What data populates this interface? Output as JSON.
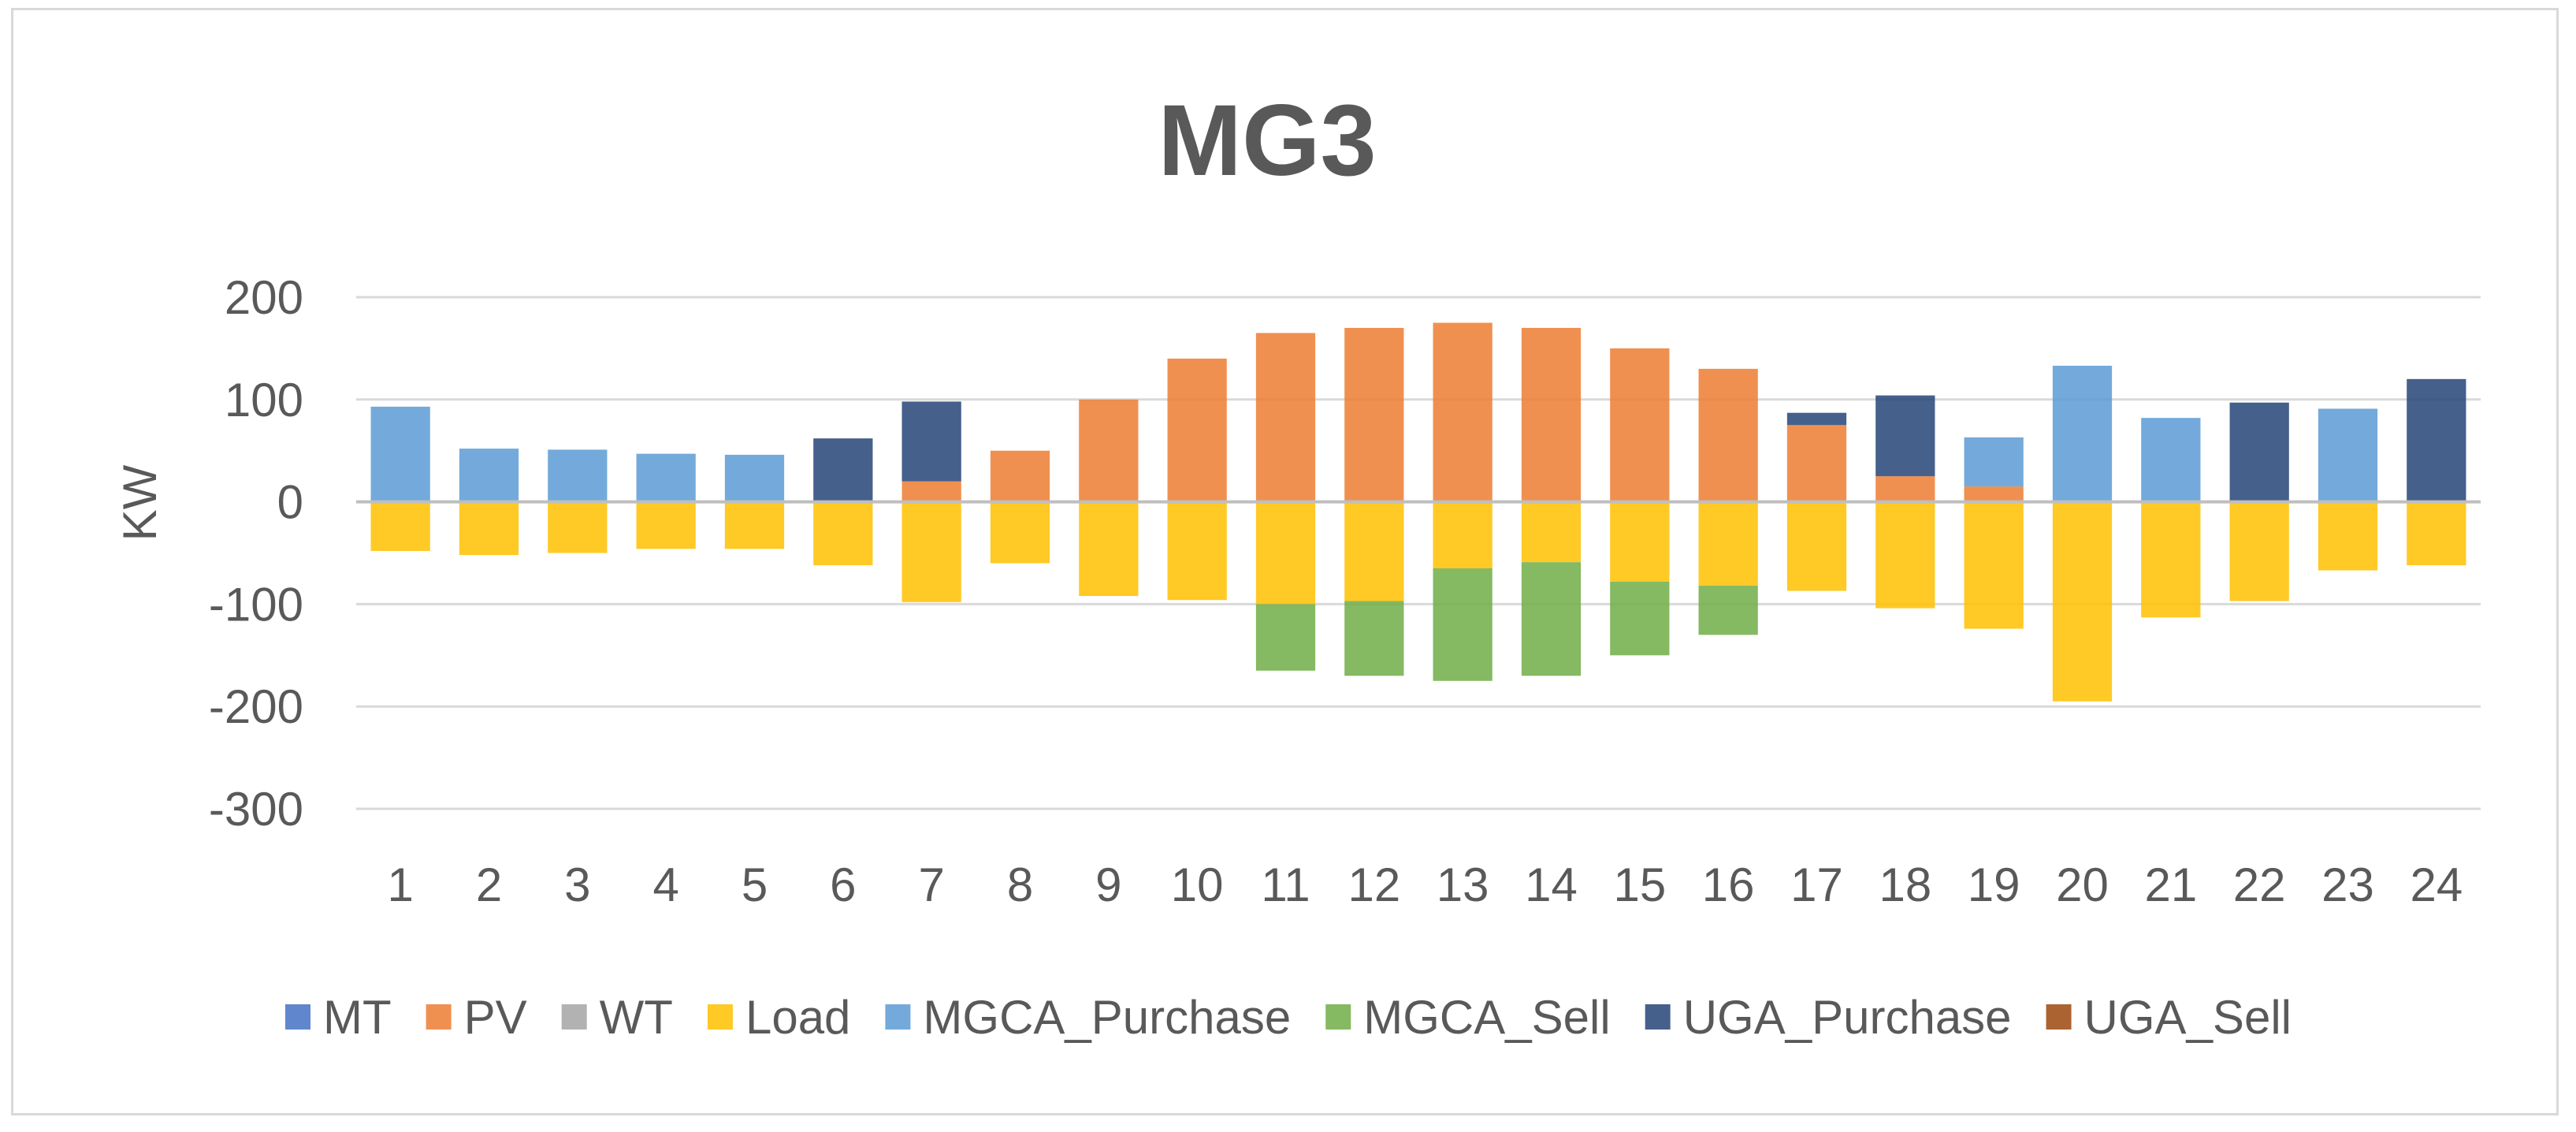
{
  "chart_data": {
    "type": "bar",
    "stacked": true,
    "title": "MG3",
    "xlabel": "",
    "ylabel": "KW",
    "ylim": [
      -300,
      200
    ],
    "yticks": [
      200,
      100,
      0,
      -100,
      -200,
      -300
    ],
    "grid": true,
    "legend_position": "bottom",
    "categories": [
      "1",
      "2",
      "3",
      "4",
      "5",
      "6",
      "7",
      "8",
      "9",
      "10",
      "11",
      "12",
      "13",
      "14",
      "15",
      "16",
      "17",
      "18",
      "19",
      "20",
      "21",
      "22",
      "23",
      "24"
    ],
    "series": [
      {
        "name": "MT",
        "color": "#4472C4",
        "values": [
          0,
          0,
          0,
          0,
          0,
          0,
          0,
          0,
          0,
          0,
          0,
          0,
          0,
          0,
          0,
          0,
          0,
          0,
          0,
          0,
          0,
          0,
          0,
          0
        ]
      },
      {
        "name": "PV",
        "color": "#ED7D31",
        "values": [
          0,
          0,
          0,
          0,
          0,
          0,
          20,
          50,
          100,
          140,
          165,
          170,
          175,
          170,
          150,
          130,
          75,
          25,
          15,
          0,
          0,
          0,
          0,
          0
        ]
      },
      {
        "name": "WT",
        "color": "#A5A5A5",
        "values": [
          0,
          0,
          0,
          0,
          0,
          0,
          0,
          0,
          0,
          0,
          0,
          0,
          0,
          0,
          0,
          0,
          0,
          0,
          0,
          0,
          0,
          0,
          0,
          0
        ]
      },
      {
        "name": "Load",
        "color": "#FFC000",
        "values": [
          -48,
          -52,
          -50,
          -46,
          -46,
          -62,
          -98,
          -60,
          -92,
          -96,
          -100,
          -97,
          -65,
          -59,
          -78,
          -82,
          -87,
          -104,
          -124,
          -195,
          -113,
          -97,
          -67,
          -62
        ]
      },
      {
        "name": "MGCA_Purchase",
        "color": "#5B9BD5",
        "values": [
          93,
          52,
          51,
          47,
          46,
          0,
          0,
          0,
          0,
          0,
          0,
          0,
          0,
          0,
          0,
          0,
          0,
          0,
          48,
          133,
          82,
          0,
          91,
          0
        ]
      },
      {
        "name": "MGCA_Sell",
        "color": "#70AD47",
        "values": [
          0,
          0,
          0,
          0,
          0,
          0,
          0,
          0,
          0,
          0,
          -65,
          -73,
          -110,
          -111,
          -72,
          -48,
          0,
          0,
          0,
          0,
          0,
          0,
          0,
          0
        ]
      },
      {
        "name": "UGA_Purchase",
        "color": "#264478",
        "values": [
          0,
          0,
          0,
          0,
          0,
          62,
          78,
          0,
          0,
          0,
          0,
          0,
          0,
          0,
          0,
          0,
          12,
          79,
          0,
          0,
          0,
          97,
          0,
          120
        ]
      },
      {
        "name": "UGA_Sell",
        "color": "#9E480E",
        "values": [
          0,
          0,
          0,
          0,
          0,
          0,
          0,
          0,
          0,
          0,
          0,
          0,
          0,
          0,
          0,
          0,
          0,
          0,
          0,
          0,
          0,
          0,
          0,
          0
        ]
      }
    ]
  }
}
